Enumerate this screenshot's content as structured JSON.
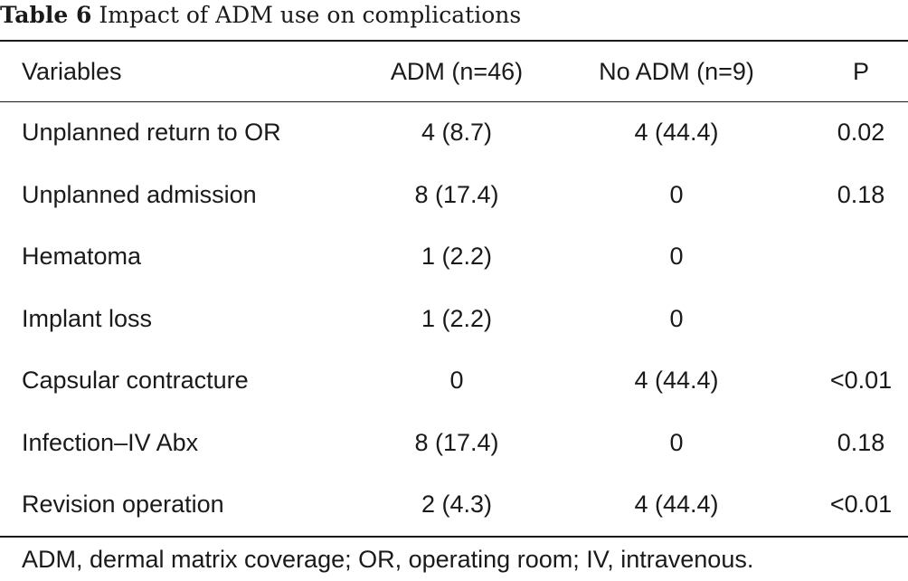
{
  "caption": {
    "label": "Table 6",
    "title": "Impact of ADM use on complications"
  },
  "table": {
    "headers": [
      "Variables",
      "ADM (n=46)",
      "No ADM (n=9)",
      "P"
    ],
    "rows": [
      [
        "Unplanned return to OR",
        "4 (8.7)",
        "4 (44.4)",
        "0.02"
      ],
      [
        "Unplanned admission",
        "8 (17.4)",
        "0",
        "0.18"
      ],
      [
        "Hematoma",
        "1 (2.2)",
        "0",
        ""
      ],
      [
        "Implant loss",
        "1 (2.2)",
        "0",
        ""
      ],
      [
        "Capsular contracture",
        "0",
        "4 (44.4)",
        "<0.01"
      ],
      [
        "Infection–IV Abx",
        "8 (17.4)",
        "0",
        "0.18"
      ],
      [
        "Revision operation",
        "2 (4.3)",
        "4 (44.4)",
        "<0.01"
      ]
    ]
  },
  "footnote": "ADM, dermal matrix coverage; OR, operating room; IV, intravenous."
}
